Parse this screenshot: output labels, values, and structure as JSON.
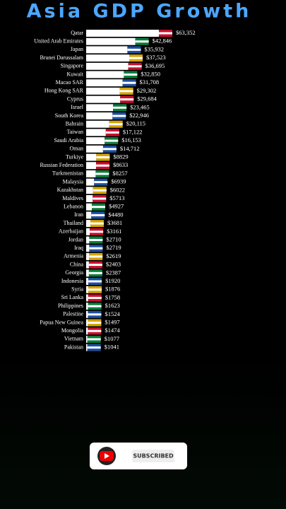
{
  "chart_data": {
    "type": "bar",
    "title": "Asia GDP Growth",
    "categories": [
      "Qatar",
      "United Arab Emirates",
      "Japan",
      "Brunei Darussalam",
      "Singapore",
      "Kuwait",
      "Macao SAR",
      "Hong Kong SAR",
      "Cyprus",
      "Israel",
      "South Korea",
      "Bahrain",
      "Taiwan",
      "Saudi Arabia",
      "Oman",
      "Turkiye",
      "Russian Federation",
      "Turkmenistan",
      "Malaysia",
      "Kazakhstan",
      "Maldives",
      "Lebanon",
      "Iran",
      "Thailand",
      "Azerbaijan",
      "Jordan",
      "Iraq",
      "Armenia",
      "China",
      "Georgia",
      "Indonesia",
      "Syria",
      "Sri Lanka",
      "Philippines",
      "Palestine",
      "Papua New Guinea",
      "Mongolia",
      "Vietnam",
      "Pakistan"
    ],
    "values": [
      63352,
      42846,
      35932,
      37523,
      36695,
      32850,
      31708,
      29302,
      29684,
      23465,
      22946,
      20115,
      17122,
      16153,
      14712,
      8829,
      8633,
      8257,
      6939,
      6022,
      5713,
      4927,
      4480,
      3681,
      3161,
      2710,
      2719,
      2619,
      2403,
      2387,
      1920,
      1876,
      1758,
      1623,
      1524,
      1497,
      1474,
      1077,
      1041
    ],
    "value_labels": [
      "$63,352",
      "$42,846",
      "$35,932",
      "$37,523",
      "$36,695",
      "$32,850",
      "$31,708",
      "$29,302",
      "$29,684",
      "$23,465",
      "$22,946",
      "$20,115",
      "$17,122",
      "$16,153",
      "$14,712",
      "$8829",
      "$8633",
      "$8257",
      "$6939",
      "$6022",
      "$5713",
      "$4927",
      "$4480",
      "$3681",
      "$3161",
      "$2710",
      "$2719",
      "$2619",
      "$2403",
      "$2387",
      "$1920",
      "$1876",
      "$1758",
      "$1623",
      "$1524",
      "$1497",
      "$1474",
      "$1077",
      "$1041"
    ],
    "color": "#ffffff"
  },
  "button": {
    "label": "SUBSCRIBED"
  }
}
